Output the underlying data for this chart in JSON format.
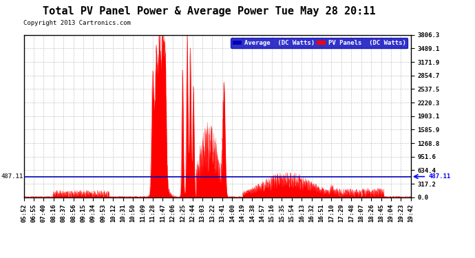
{
  "title": "Total PV Panel Power & Average Power Tue May 28 20:11",
  "copyright": "Copyright 2013 Cartronics.com",
  "legend_labels": [
    "Average  (DC Watts)",
    "PV Panels  (DC Watts)"
  ],
  "legend_colors": [
    "#0000bb",
    "#ff0000"
  ],
  "yticks": [
    0.0,
    317.2,
    634.4,
    951.6,
    1268.8,
    1585.9,
    1903.1,
    2220.3,
    2537.5,
    2854.7,
    3171.9,
    3489.1,
    3806.3
  ],
  "ymax": 3806.3,
  "ymin": 0.0,
  "hline_y": 487.11,
  "hline_label": "487.11",
  "bg_color": "#ffffff",
  "plot_bg_color": "#ffffff",
  "grid_color": "#aaaaaa",
  "xtick_labels": [
    "05:52",
    "06:55",
    "07:40",
    "08:16",
    "08:37",
    "08:56",
    "09:15",
    "09:34",
    "09:53",
    "10:12",
    "10:31",
    "10:50",
    "11:09",
    "11:28",
    "11:47",
    "12:06",
    "12:25",
    "12:44",
    "13:03",
    "13:22",
    "13:41",
    "14:00",
    "14:19",
    "14:38",
    "14:57",
    "15:16",
    "15:35",
    "15:54",
    "16:13",
    "16:32",
    "16:51",
    "17:10",
    "17:29",
    "17:48",
    "18:07",
    "18:26",
    "18:45",
    "19:04",
    "19:23",
    "19:42"
  ],
  "title_fontsize": 11,
  "axis_fontsize": 6.5,
  "copyright_fontsize": 6.5
}
